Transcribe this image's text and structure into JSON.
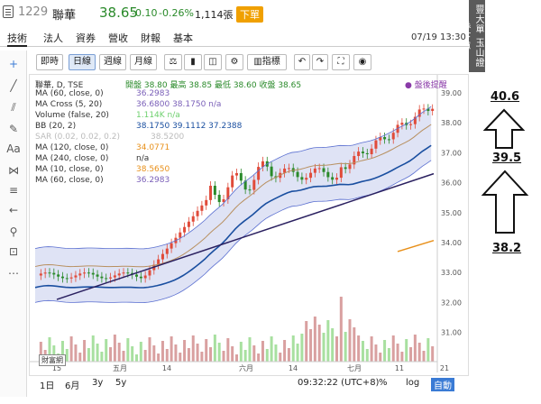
{
  "header": {
    "code": "1229",
    "name": "聯華",
    "price": "38.65",
    "change": "-0.10",
    "pct": "-0.26%",
    "volume": "1,114張",
    "badge": "下單"
  },
  "menu": {
    "items": [
      "技術",
      "法人",
      "資券",
      "營收",
      "財報",
      "基本"
    ],
    "date": "07/19 13:30"
  },
  "side_tab": "豐大單 玉山證券下單",
  "toolbar": {
    "intraday": "即時",
    "daily": "日線",
    "weekly": "週線",
    "monthly": "月線",
    "indicator": "指標"
  },
  "indicators": [
    {
      "label": "聯華, D, TSE",
      "vals": "開盤 38.80 最高 38.85 最低 38.60 收盤 38.65",
      "color": "#333"
    },
    {
      "label": "MA (60, close, 0)",
      "vals": "36.2983",
      "color": "#7a5fb8"
    },
    {
      "label": "MA Cross (5, 20)",
      "vals": "36.6800 38.1750 n/a",
      "color": "#7a5fb8"
    },
    {
      "label": "Volume (false, 20)",
      "vals": "1.114K n/a",
      "color": "#6dd06d"
    },
    {
      "label": "BB (20, 2)",
      "vals": "38.1750 39.1112 37.2388",
      "color": "#1a4fa0"
    },
    {
      "label": "SAR (0.02, 0.02, 0.2)",
      "vals": "38.5200",
      "color": "#bbb"
    },
    {
      "label": "MA (120, close, 0)",
      "vals": "34.0771",
      "color": "#e8901a"
    },
    {
      "label": "MA (240, close, 0)",
      "vals": "n/a",
      "color": "#333"
    },
    {
      "label": "MA (10, close, 0)",
      "vals": "38.5650",
      "color": "#e8901a"
    },
    {
      "label": "MA (60, close, 0)",
      "vals": "36.2983",
      "color": "#7a5fb8"
    }
  ],
  "reminder": "● 盤後提醒",
  "y_ticks": [
    "39.00",
    "38.00",
    "37.00",
    "36.00",
    "35.00",
    "34.00",
    "33.00",
    "32.00",
    "31.00"
  ],
  "x_ticks": [
    "15",
    "五月",
    "14",
    "六月",
    "14",
    "七月",
    "11",
    "21"
  ],
  "bottom": {
    "ranges": [
      "1日",
      "6月",
      "3y",
      "5y"
    ],
    "time": "09:32:22 (UTC+8)",
    "pct": "%",
    "log": "log",
    "auto": "自動"
  },
  "annotations": {
    "a1": "40.6",
    "a2": "39.5",
    "a3": "38.2"
  },
  "logo": "財富網"
}
